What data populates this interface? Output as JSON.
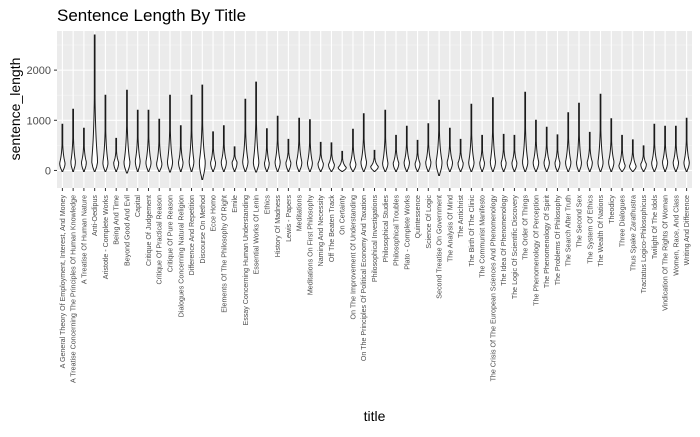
{
  "chart_data": {
    "type": "violin",
    "title": "Sentence Length By Title",
    "xlabel": "title",
    "ylabel": "sentence_length",
    "ylim": [
      -350,
      2780
    ],
    "y_ticks": [
      0,
      1000,
      2000
    ],
    "grid": true,
    "legend": "none",
    "colors": {
      "panel_bg": "#ebebeb",
      "grid_major": "#ffffff",
      "grid_minor": "#f5f5f5",
      "violin_stroke": "#1a1a1a",
      "violin_fill": "#ffffff"
    },
    "categories": [
      "A General Theory Of Employment, Interest, And Money",
      "A Treatise Concerning The Principles Of Human Knowledge",
      "A Treatise Of Human Nature",
      "Anti-Oedipus",
      "Aristotle - Complete Works",
      "Being And Time",
      "Beyond Good And Evil",
      "Capital",
      "Critique Of Judgement",
      "Critique Of Practical Reason",
      "Critique Of Pure Reason",
      "Dialogues Concerning Natural Religion",
      "Difference And Repetition",
      "Discourse On Method",
      "Ecce Homo",
      "Elements Of The Philosophy Of Right",
      "Emile",
      "Essay Concerning Human Understanding",
      "Essential Works Of Lenin",
      "Ethics",
      "History Of Madness",
      "Lewis - Papers",
      "Meditations",
      "Meditations On First Philosophy",
      "Naming And Necessity",
      "Off The Beaten Track",
      "On Certainty",
      "On The Improvement Of Understanding",
      "On The Principles Of Political Economy And Taxation",
      "Philosophical Investigations",
      "Philosophical Studies",
      "Philosophical Troubles",
      "Plato - Complete Works",
      "Quintessence",
      "Science Of Logic",
      "Second Treatise On Government",
      "The Analysis Of Mind",
      "The Antichrist",
      "The Birth Of The Clinic",
      "The Communist Manifesto",
      "The Crisis Of The European Sciences And Phenomenology",
      "The Idea Of Phenomenology",
      "The Logic Of Scientific Discovery",
      "The Order Of Things",
      "The Phenomenology Of Perception",
      "The Phenomenology Of Spirit",
      "The Problems Of Philosophy",
      "The Search After Truth",
      "The Second Sex",
      "The System Of Ethics",
      "The Wealth Of Nations",
      "Theodicy",
      "Three Dialogues",
      "Thus Spake Zarathustra",
      "Tractatus Logico-Philosophicus",
      "Twilight Of The Idols",
      "Vindication Of The Rights Of Woman",
      "Women, Race, And Class",
      "Writing And Difference"
    ],
    "series": [
      {
        "max": [
          920,
          1220,
          840,
          2700,
          1500,
          640,
          1600,
          1200,
          1200,
          1020,
          1500,
          890,
          1500,
          1700,
          770,
          890,
          470,
          1420,
          1760,
          830,
          1080,
          620,
          1040,
          1010,
          560,
          550,
          380,
          820,
          1130,
          400,
          1200,
          700,
          880,
          600,
          930,
          1400,
          840,
          620,
          1320,
          700,
          1450,
          720,
          700,
          1560,
          1000,
          860,
          710,
          1150,
          1340,
          760,
          1520,
          1030,
          700,
          610,
          490,
          920,
          880,
          880,
          1040
        ],
        "min": [
          -20,
          -20,
          -20,
          -20,
          -20,
          -20,
          -50,
          -20,
          -20,
          -20,
          -30,
          -20,
          -20,
          -180,
          -20,
          -20,
          -20,
          -20,
          -30,
          -20,
          -20,
          -20,
          -20,
          -20,
          -20,
          -20,
          -20,
          -20,
          -20,
          -20,
          -20,
          -20,
          -20,
          -20,
          -20,
          -100,
          -20,
          -20,
          -20,
          -20,
          -20,
          -20,
          -20,
          -20,
          -20,
          -20,
          -20,
          -20,
          -20,
          -20,
          -20,
          -20,
          -20,
          -20,
          -20,
          -20,
          -20,
          -20,
          -20
        ],
        "width": [
          0.5,
          0.42,
          0.45,
          0.55,
          0.48,
          0.46,
          0.55,
          0.45,
          0.48,
          0.5,
          0.48,
          0.42,
          0.44,
          0.55,
          0.46,
          0.48,
          0.46,
          0.5,
          0.52,
          0.44,
          0.48,
          0.46,
          0.5,
          0.46,
          0.5,
          0.55,
          0.75,
          0.55,
          0.52,
          0.7,
          0.5,
          0.52,
          0.5,
          0.46,
          0.48,
          0.55,
          0.5,
          0.48,
          0.5,
          0.44,
          0.48,
          0.46,
          0.46,
          0.5,
          0.52,
          0.5,
          0.46,
          0.5,
          0.46,
          0.48,
          0.48,
          0.5,
          0.58,
          0.62,
          0.52,
          0.5,
          0.48,
          0.5,
          0.5
        ],
        "peak": [
          150,
          180,
          170,
          200,
          160,
          160,
          170,
          200,
          170,
          140,
          180,
          170,
          190,
          180,
          160,
          180,
          170,
          190,
          180,
          150,
          180,
          160,
          170,
          160,
          140,
          120,
          60,
          130,
          170,
          80,
          150,
          150,
          170,
          140,
          170,
          180,
          170,
          150,
          170,
          160,
          180,
          160,
          160,
          180,
          170,
          170,
          160,
          170,
          160,
          170,
          170,
          180,
          100,
          90,
          130,
          160,
          180,
          170,
          170
        ]
      }
    ]
  }
}
